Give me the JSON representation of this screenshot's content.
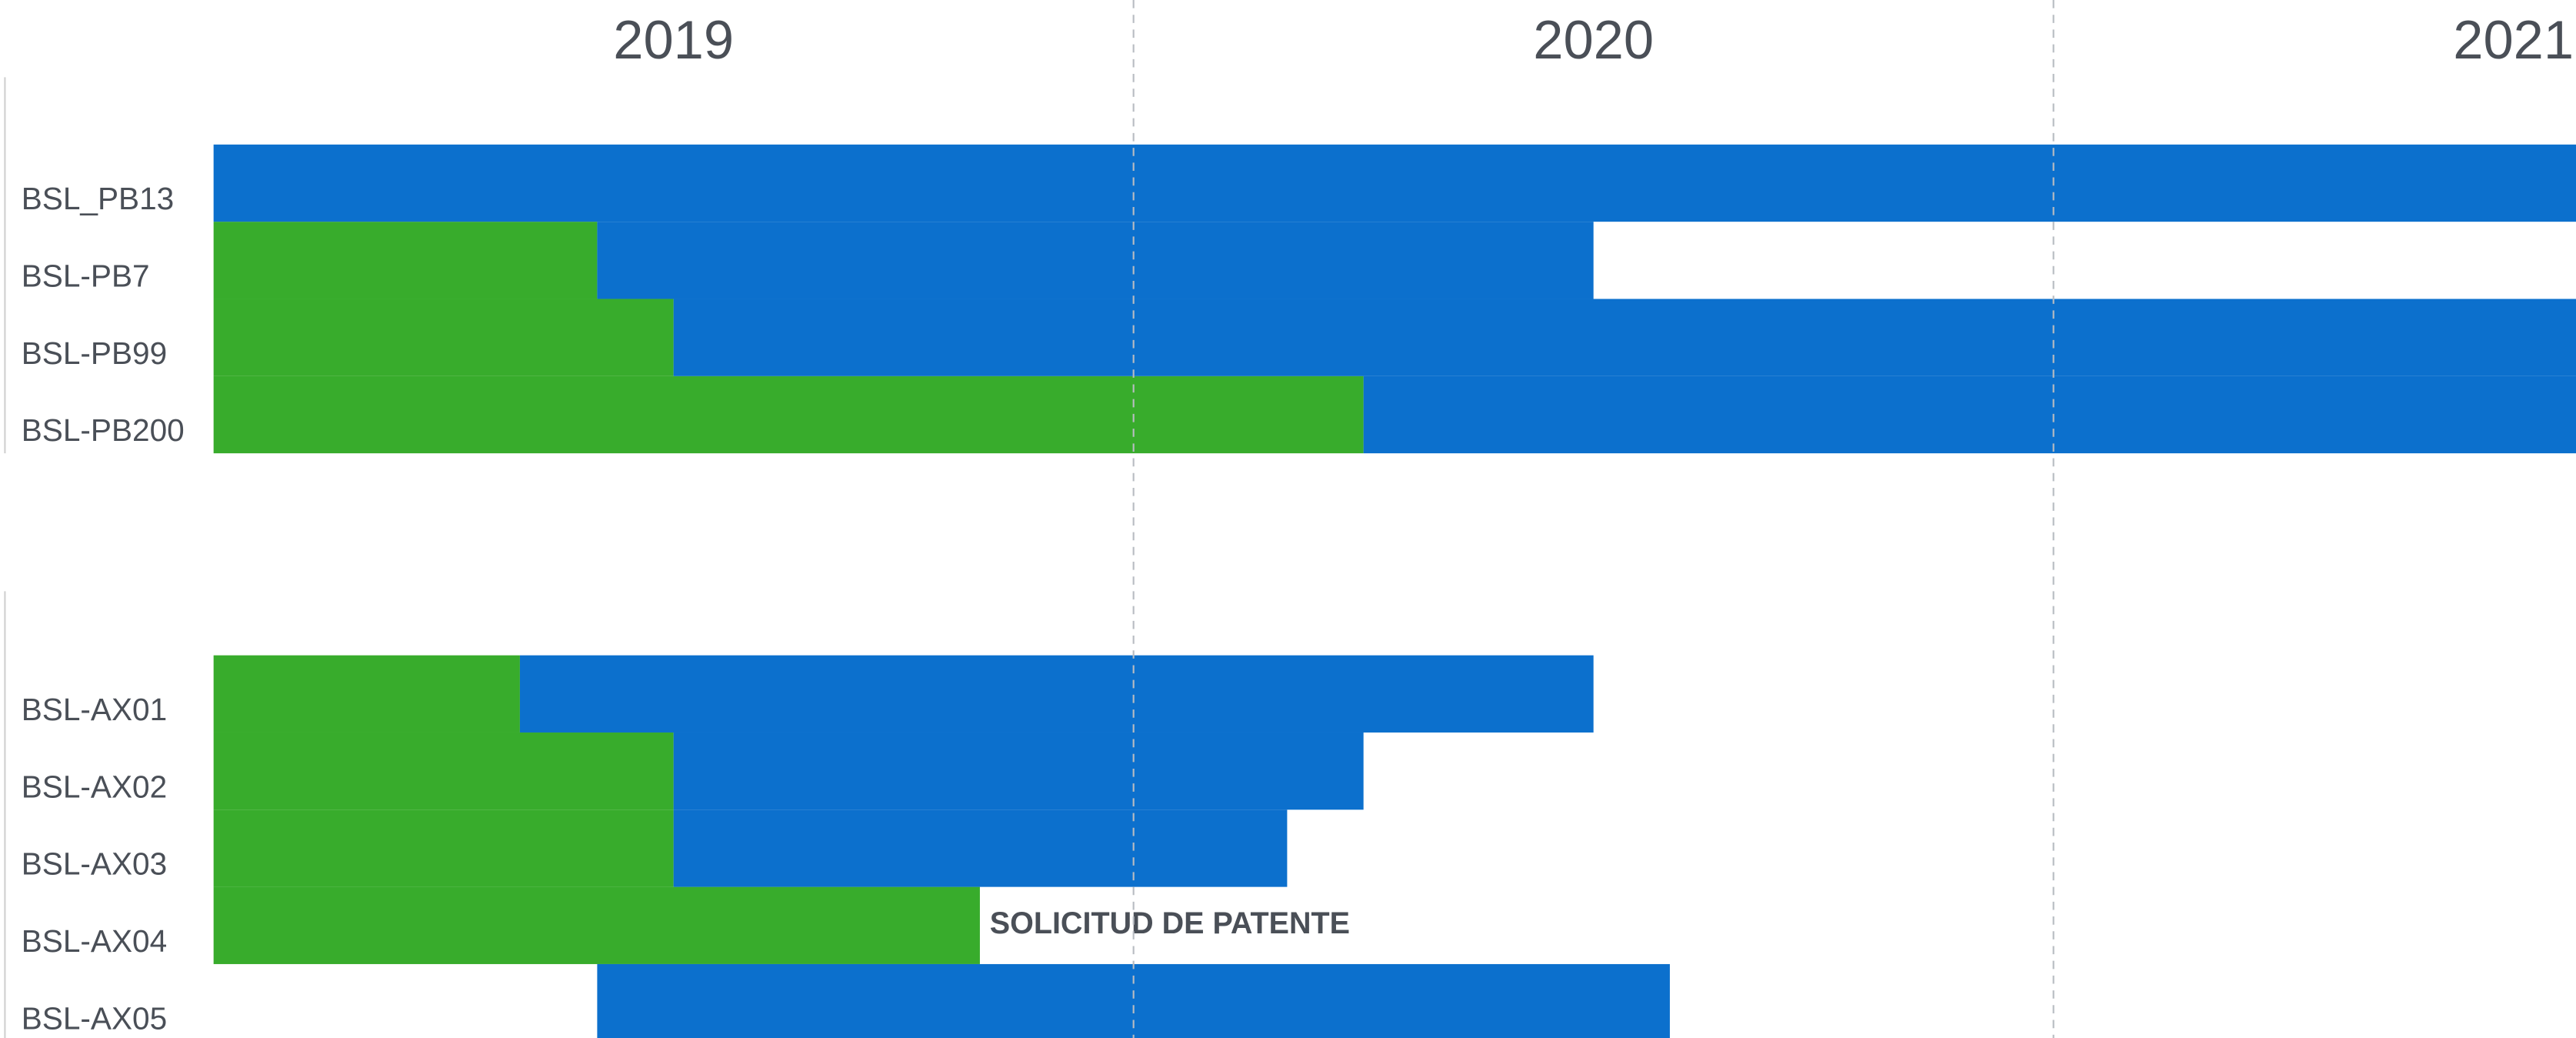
{
  "chart_data": {
    "type": "gantt",
    "categories": [
      "BSL_PB13",
      "BSL-PB7",
      "BSL-PB99",
      "BSL-PB200",
      "BSL-AX01",
      "BSL-AX02",
      "BSL-AX03",
      "BSL-AX04",
      "BSL-AX05"
    ],
    "series": [
      {
        "color": "#38ac2c",
        "values": [
          null,
          [
            2019,
            2019.417
          ],
          [
            2019,
            2019.5
          ],
          [
            2019,
            2020.25
          ],
          [
            2019,
            2019.333
          ],
          [
            2019,
            2019.5
          ],
          [
            2019,
            2019.5
          ],
          [
            2019,
            2019.833
          ],
          null
        ]
      },
      {
        "color": "#0c70cd",
        "values": [
          [
            2019,
            2021.6
          ],
          [
            2019.417,
            2020.5
          ],
          [
            2019.5,
            2021.6
          ],
          [
            2020.25,
            2021.6
          ],
          [
            2019.333,
            2020.5
          ],
          [
            2019.5,
            2020.25
          ],
          [
            2019.5,
            2020.167
          ],
          null,
          [
            2019.417,
            2020.583
          ]
        ]
      }
    ],
    "annotation": "SOLICITUD DE PATENTE",
    "xlim": [
      2019,
      2021.568
    ],
    "xticks": [
      {
        "value": 2019.5,
        "label": "2019"
      },
      {
        "value": 2020.5,
        "label": "2020"
      },
      {
        "value": 2021.5,
        "label": "2021"
      }
    ],
    "xgrid": [
      2020,
      2021
    ],
    "grid": true
  }
}
